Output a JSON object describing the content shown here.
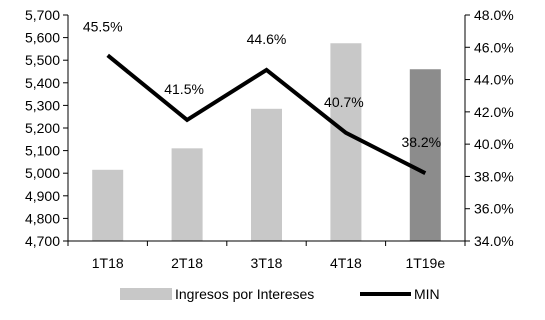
{
  "chart_data": {
    "type": "bar",
    "categories": [
      "1T18",
      "2T18",
      "3T18",
      "4T18",
      "1T19e"
    ],
    "series": [
      {
        "name": "Ingresos por Intereses",
        "type": "bar",
        "axis": "left",
        "values": [
          5015,
          5110,
          5285,
          5575,
          5460
        ],
        "colors": [
          "#c8c8c8",
          "#c8c8c8",
          "#c8c8c8",
          "#c8c8c8",
          "#8c8c8c"
        ]
      },
      {
        "name": "MIN",
        "type": "line",
        "axis": "right",
        "values": [
          45.5,
          41.5,
          44.6,
          40.7,
          38.2
        ],
        "labels": [
          "45.5%",
          "41.5%",
          "44.6%",
          "40.7%",
          "38.2%"
        ],
        "color": "#000000"
      }
    ],
    "left_axis": {
      "ylim": [
        4700,
        5700
      ],
      "ticks": [
        4700,
        4800,
        4900,
        5000,
        5100,
        5200,
        5300,
        5400,
        5500,
        5600,
        5700
      ],
      "tick_labels": [
        "4,700",
        "4,800",
        "4,900",
        "5,000",
        "5,100",
        "5,200",
        "5,300",
        "5,400",
        "5,500",
        "5,600",
        "5,700"
      ]
    },
    "right_axis": {
      "ylim": [
        34,
        48
      ],
      "ticks": [
        34,
        36,
        38,
        40,
        42,
        44,
        46,
        48
      ],
      "tick_labels": [
        "34.0%",
        "36.0%",
        "38.0%",
        "40.0%",
        "42.0%",
        "44.0%",
        "46.0%",
        "48.0%"
      ]
    },
    "legend": {
      "position": "bottom",
      "items": [
        {
          "label": "Ingresos por Intereses",
          "marker": "bar",
          "color": "#c8c8c8"
        },
        {
          "label": "MIN",
          "marker": "line",
          "color": "#000000"
        }
      ]
    },
    "grid": false
  }
}
